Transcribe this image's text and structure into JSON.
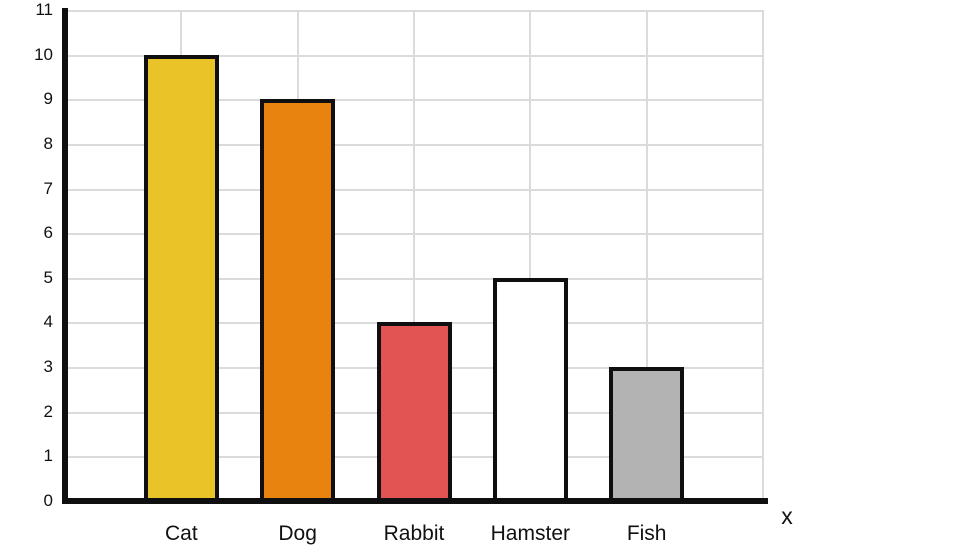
{
  "chart_data": {
    "type": "bar",
    "title": "",
    "xlabel": "x",
    "ylabel": "",
    "categories": [
      "Cat",
      "Dog",
      "Rabbit",
      "Hamster",
      "Fish"
    ],
    "values": [
      10,
      9,
      4,
      5,
      3
    ],
    "bar_colors": [
      "#E9C327",
      "#E8830F",
      "#E25353",
      "#FFFFFF",
      "#B3B3B3"
    ],
    "bar_border_color": "#0F0F0F",
    "axis_color": "#0F0F0F",
    "gridline_color": "#DBDBDB",
    "grid": true,
    "legend": "none",
    "ylim": [
      0,
      11
    ],
    "ytick_step": 1,
    "yticks": [
      "0",
      "1",
      "2",
      "3",
      "4",
      "5",
      "6",
      "7",
      "8",
      "9",
      "10",
      "11"
    ]
  }
}
